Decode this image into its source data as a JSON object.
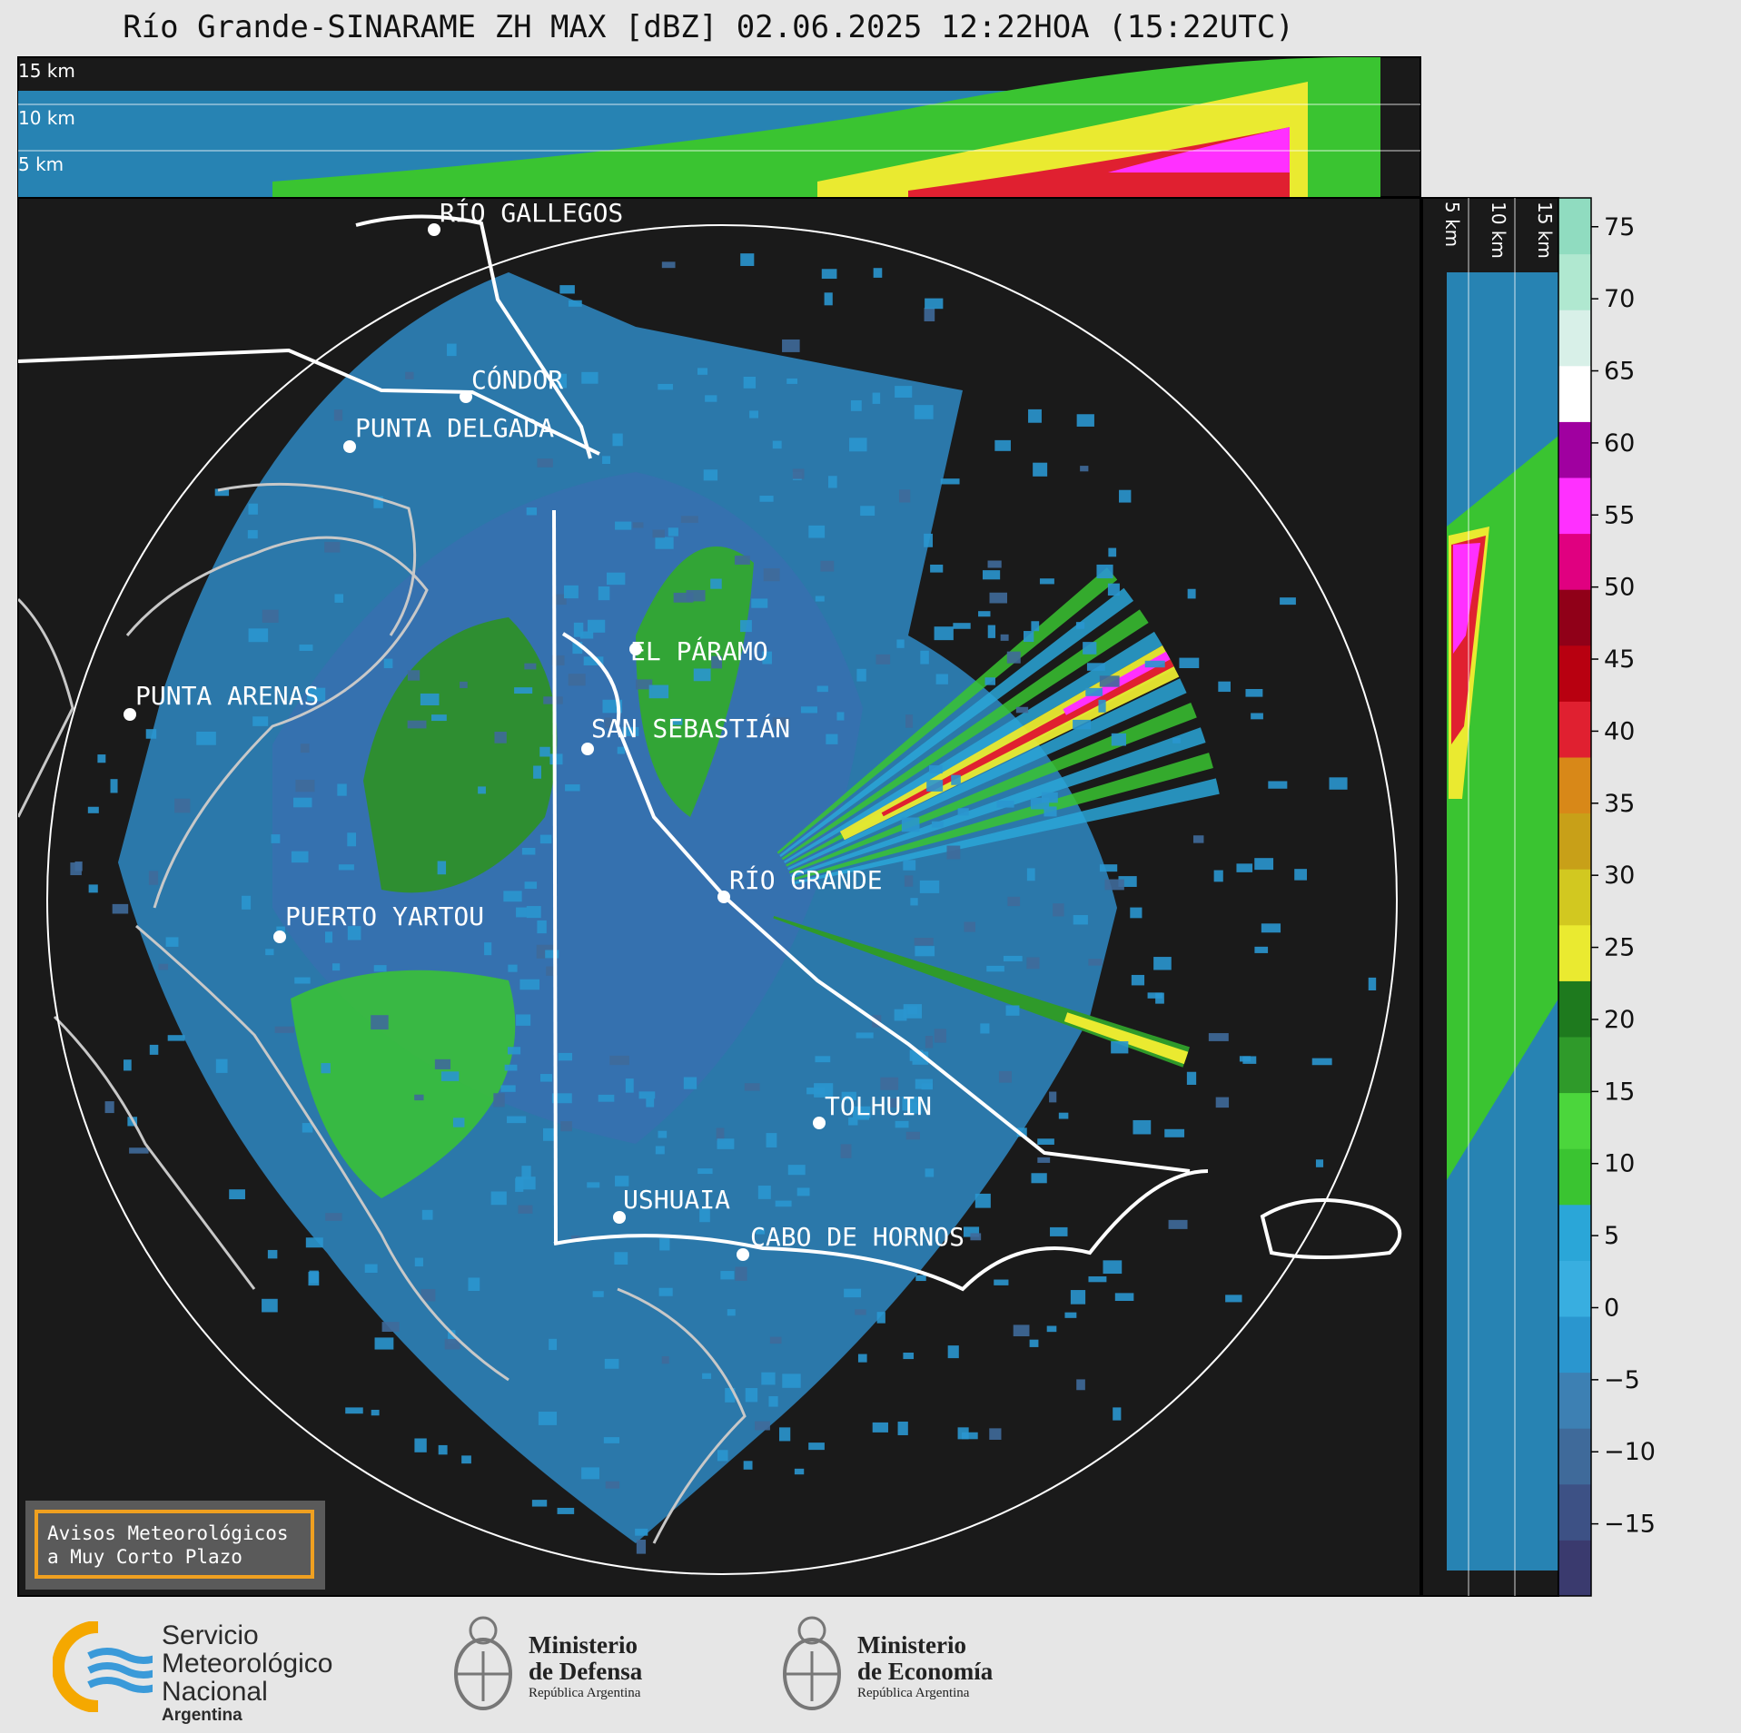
{
  "title": "Río Grande-SINARAME ZH MAX [dBZ] 02.06.2025 12:22HOA (15:22UTC)",
  "top_panel": {
    "height_labels": [
      "15 km",
      "10 km",
      "5 km"
    ]
  },
  "side_panel": {
    "height_labels": [
      "5 km",
      "10 km",
      "15 km"
    ]
  },
  "cities": [
    {
      "name": "RÍO GALLEGOS"
    },
    {
      "name": "CÓNDOR"
    },
    {
      "name": "PUNTA DELGADA"
    },
    {
      "name": "EL PÁRAMO"
    },
    {
      "name": "PUNTA ARENAS"
    },
    {
      "name": "SAN SEBASTIÁN"
    },
    {
      "name": "RÍO GRANDE"
    },
    {
      "name": "PUERTO YARTOU"
    },
    {
      "name": "TOLHUIN"
    },
    {
      "name": "USHUAIA"
    },
    {
      "name": "CABO DE HORNOS"
    }
  ],
  "colorbar": {
    "unit": "dBZ",
    "range": [
      -20,
      77
    ],
    "ticks": [
      "75",
      "70",
      "65",
      "60",
      "55",
      "50",
      "45",
      "40",
      "35",
      "30",
      "25",
      "20",
      "15",
      "10",
      "5",
      "0",
      "−5",
      "−10",
      "−15"
    ],
    "tick_values": [
      75,
      70,
      65,
      60,
      55,
      50,
      45,
      40,
      35,
      30,
      25,
      20,
      15,
      10,
      5,
      0,
      -5,
      -10,
      -15
    ],
    "colors": [
      "#3a3a6e",
      "#3d5185",
      "#3f6a9a",
      "#3d80b3",
      "#2a96cf",
      "#38aee0",
      "#2aa6d8",
      "#3ac431",
      "#4bd63c",
      "#2f9a2a",
      "#1e7a1e",
      "#eaea30",
      "#d2c820",
      "#c8a018",
      "#d88818",
      "#e02030",
      "#b80010",
      "#900018",
      "#e00080",
      "#ff30ff",
      "#a000a0",
      "#ffffff",
      "#d8f0e8",
      "#b0e8d0",
      "#90dcc0"
    ]
  },
  "legend_box": {
    "line1": "Avisos Meteorológicos",
    "line2": "a Muy Corto Plazo"
  },
  "logos": {
    "smn": {
      "line1": "Servicio",
      "line2": "Meteorológico",
      "line3": "Nacional",
      "line4": "Argentina"
    },
    "defensa": {
      "line1": "Ministerio",
      "line2": "de Defensa",
      "line3": "República Argentina"
    },
    "economia": {
      "line1": "Ministerio",
      "line2": "de Economía",
      "line3": "República Argentina"
    }
  }
}
